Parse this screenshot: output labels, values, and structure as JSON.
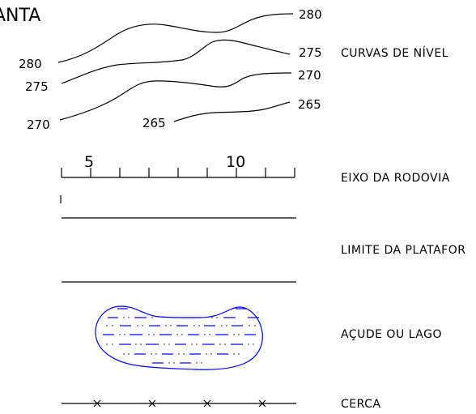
{
  "title": "ANTA",
  "contours": {
    "label": "CURVAS DE NÍVEL",
    "levels": {
      "c280_right": "280",
      "c280_left": "280",
      "c275_right": "275",
      "c275_left": "275",
      "c270_right": "270",
      "c270_left": "270",
      "c265_right": "265",
      "c265_left": "265"
    }
  },
  "axis": {
    "label": "EIXO DA RODOVIA",
    "tick_5": "5",
    "tick_10": "10"
  },
  "platform": {
    "label": "LIMITE DA PLATAFOR"
  },
  "lake": {
    "label": "AÇUDE OU LAGO",
    "outline_color": "#0000ff",
    "dash_color": "#0000ff"
  },
  "fence": {
    "label": "CERCA"
  }
}
